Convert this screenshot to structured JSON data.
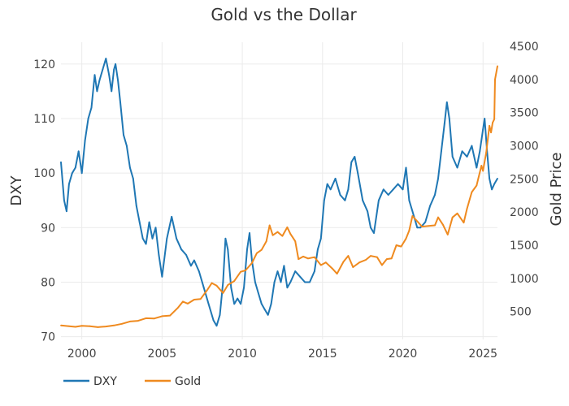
{
  "chart_data": {
    "type": "line",
    "title": "Gold vs the Dollar",
    "xlabel": "",
    "ylabel": "DXY",
    "y2label": "Gold Price",
    "xlim": [
      1998.7,
      2025.9
    ],
    "ylim": [
      69.5,
      124
    ],
    "y2lim": [
      80,
      4560
    ],
    "x_ticks": [
      2000,
      2005,
      2010,
      2015,
      2020,
      2025
    ],
    "y_ticks": [
      70,
      80,
      90,
      100,
      110,
      120
    ],
    "y2_ticks": [
      500,
      1000,
      1500,
      2000,
      2500,
      3000,
      3500,
      4000,
      4500
    ],
    "grid": true,
    "legend_position": "bottom-left",
    "series": [
      {
        "name": "DXY",
        "axis": "left",
        "color": "#1f77b4",
        "x": [
          1998.7,
          1998.9,
          1999.05,
          1999.2,
          1999.4,
          1999.6,
          1999.8,
          2000.0,
          2000.2,
          2000.4,
          2000.6,
          2000.8,
          2000.95,
          2001.1,
          2001.3,
          2001.5,
          2001.7,
          2001.85,
          2002.0,
          2002.1,
          2002.25,
          2002.4,
          2002.6,
          2002.8,
          2003.0,
          2003.2,
          2003.4,
          2003.6,
          2003.8,
          2004.0,
          2004.2,
          2004.4,
          2004.6,
          2004.8,
          2005.0,
          2005.3,
          2005.6,
          2005.9,
          2006.2,
          2006.5,
          2006.8,
          2007.0,
          2007.3,
          2007.6,
          2007.9,
          2008.2,
          2008.4,
          2008.6,
          2008.8,
          2008.95,
          2009.1,
          2009.3,
          2009.5,
          2009.7,
          2009.9,
          2010.1,
          2010.3,
          2010.45,
          2010.6,
          2010.8,
          2011.0,
          2011.2,
          2011.4,
          2011.6,
          2011.8,
          2012.0,
          2012.2,
          2012.4,
          2012.6,
          2012.8,
          2013.0,
          2013.3,
          2013.6,
          2013.9,
          2014.2,
          2014.5,
          2014.7,
          2014.9,
          2015.1,
          2015.3,
          2015.5,
          2015.8,
          2016.1,
          2016.4,
          2016.6,
          2016.8,
          2017.0,
          2017.2,
          2017.5,
          2017.8,
          2018.0,
          2018.2,
          2018.5,
          2018.8,
          2019.1,
          2019.4,
          2019.7,
          2020.0,
          2020.2,
          2020.4,
          2020.6,
          2020.9,
          2021.1,
          2021.4,
          2021.7,
          2022.0,
          2022.2,
          2022.4,
          2022.6,
          2022.75,
          2022.9,
          2023.1,
          2023.4,
          2023.7,
          2024.0,
          2024.3,
          2024.6,
          2024.8,
          2025.0,
          2025.1,
          2025.25,
          2025.4,
          2025.55,
          2025.7,
          2025.9
        ],
        "values": [
          102,
          95,
          93,
          98,
          100,
          101,
          104,
          100,
          106,
          110,
          112,
          118,
          115,
          117,
          119,
          121,
          118,
          115,
          119,
          120,
          117,
          113,
          107,
          105,
          101,
          99,
          94,
          91,
          88,
          87,
          91,
          88,
          90,
          85,
          81,
          88,
          92,
          88,
          86,
          85,
          83,
          84,
          82,
          79,
          76,
          73,
          72,
          74,
          80,
          88,
          86,
          79,
          76,
          77,
          76,
          79,
          86,
          89,
          84,
          80,
          78,
          76,
          75,
          74,
          76,
          80,
          82,
          80,
          83,
          79,
          80,
          82,
          81,
          80,
          80,
          82,
          86,
          88,
          95,
          98,
          97,
          99,
          96,
          95,
          97,
          102,
          103,
          100,
          95,
          93,
          90,
          89,
          95,
          97,
          96,
          97,
          98,
          97,
          101,
          95,
          93,
          90,
          90,
          91,
          94,
          96,
          99,
          104,
          109,
          113,
          110,
          103,
          101,
          104,
          103,
          105,
          101,
          104,
          108,
          110,
          104,
          99,
          97,
          98,
          99
        ]
      },
      {
        "name": "Gold",
        "axis": "right",
        "color": "#ef8a1f",
        "x": [
          1998.7,
          1999.2,
          1999.6,
          2000.0,
          2000.5,
          2001.0,
          2001.5,
          2002.0,
          2002.5,
          2003.0,
          2003.5,
          2004.0,
          2004.5,
          2005.0,
          2005.5,
          2006.0,
          2006.3,
          2006.6,
          2007.0,
          2007.4,
          2007.8,
          2008.1,
          2008.4,
          2008.8,
          2009.1,
          2009.5,
          2009.9,
          2010.2,
          2010.6,
          2010.9,
          2011.2,
          2011.5,
          2011.7,
          2011.9,
          2012.2,
          2012.5,
          2012.8,
          2013.0,
          2013.3,
          2013.5,
          2013.8,
          2014.1,
          2014.5,
          2014.9,
          2015.2,
          2015.6,
          2015.9,
          2016.3,
          2016.6,
          2016.9,
          2017.3,
          2017.7,
          2018.0,
          2018.4,
          2018.7,
          2019.0,
          2019.3,
          2019.6,
          2019.9,
          2020.2,
          2020.4,
          2020.6,
          2020.9,
          2021.2,
          2021.6,
          2022.0,
          2022.2,
          2022.5,
          2022.8,
          2023.1,
          2023.4,
          2023.8,
          2024.0,
          2024.3,
          2024.6,
          2024.9,
          2025.0,
          2025.2,
          2025.4,
          2025.5,
          2025.6,
          2025.7,
          2025.75,
          2025.9
        ],
        "values": [
          290,
          280,
          270,
          285,
          280,
          265,
          275,
          290,
          315,
          350,
          360,
          400,
          395,
          430,
          440,
          560,
          650,
          620,
          680,
          690,
          820,
          930,
          890,
          780,
          900,
          960,
          1100,
          1120,
          1230,
          1380,
          1430,
          1560,
          1800,
          1650,
          1700,
          1640,
          1770,
          1670,
          1560,
          1290,
          1330,
          1300,
          1320,
          1200,
          1240,
          1150,
          1070,
          1250,
          1340,
          1170,
          1240,
          1280,
          1340,
          1320,
          1200,
          1290,
          1300,
          1500,
          1480,
          1600,
          1720,
          1940,
          1860,
          1780,
          1790,
          1800,
          1920,
          1810,
          1660,
          1920,
          1980,
          1840,
          2050,
          2300,
          2400,
          2700,
          2620,
          2900,
          3300,
          3200,
          3350,
          3400,
          4000,
          4200
        ]
      }
    ]
  }
}
